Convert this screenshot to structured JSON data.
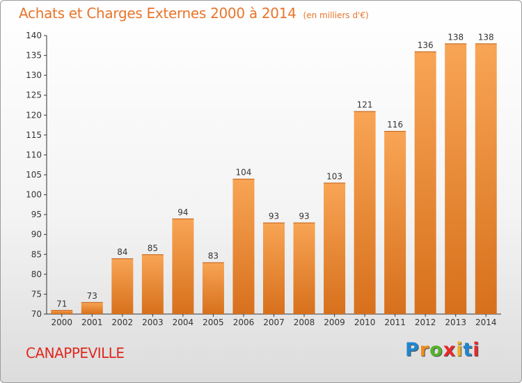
{
  "title": "Achats et Charges Externes 2000 à 2014",
  "unit": "(en milliers d'€)",
  "commune": "CANAPPEVILLE",
  "logo": {
    "letters": [
      "P",
      "r",
      "o",
      "x",
      "i",
      "t",
      "i"
    ],
    "colors": [
      "#1f86d1",
      "#f08c1e",
      "#57b22a",
      "#e8282a",
      "#f0b01e",
      "#1f86d1",
      "#e8282a"
    ]
  },
  "colors": {
    "bar_light": "#f8a555",
    "bar_dark": "#d7701c",
    "title": "#e8742a",
    "commune": "#e0281e"
  },
  "chart_data": {
    "type": "bar",
    "title": "Achats et Charges Externes 2000 à 2014",
    "subtitle": "(en milliers d'€)",
    "categories": [
      "2000",
      "2001",
      "2002",
      "2003",
      "2004",
      "2005",
      "2006",
      "2007",
      "2008",
      "2009",
      "2010",
      "2011",
      "2012",
      "2013",
      "2014"
    ],
    "values": [
      71,
      73,
      84,
      85,
      94,
      83,
      104,
      93,
      93,
      103,
      121,
      116,
      136,
      138,
      138
    ],
    "data_labels": [
      "71",
      "73",
      "84",
      "85",
      "94",
      "83",
      "104",
      "93",
      "93",
      "103",
      "121",
      "116",
      "136",
      "138",
      "138"
    ],
    "ylim": [
      70,
      140
    ],
    "yticks": [
      70,
      75,
      80,
      85,
      90,
      95,
      100,
      105,
      110,
      115,
      120,
      125,
      130,
      135,
      140
    ],
    "grid": false,
    "legend": "none"
  }
}
